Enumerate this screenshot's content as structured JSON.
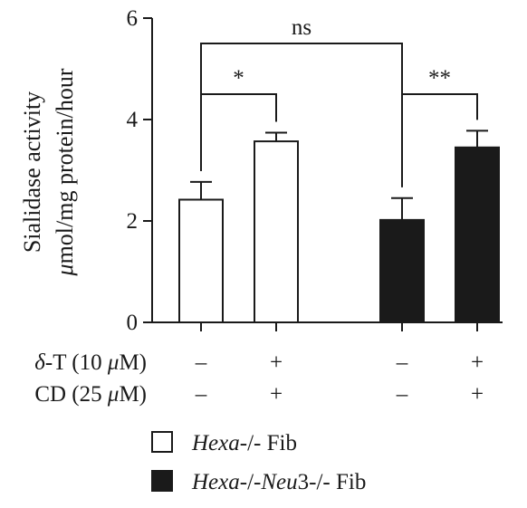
{
  "chart_data": {
    "type": "bar",
    "ylabel_line1": "Sialidase activity",
    "ylabel_line2": "μmol/mg protein/hour",
    "ylim": [
      0,
      6
    ],
    "yticks": [
      "0",
      "2",
      "4",
      "6"
    ],
    "bars": [
      {
        "group": "Hexa-/- Fib",
        "value": 2.42,
        "err": 0.35,
        "delta_t": "–",
        "cd": "–"
      },
      {
        "group": "Hexa-/- Fib",
        "value": 3.57,
        "err": 0.17,
        "delta_t": "+",
        "cd": "+"
      },
      {
        "group": "Hexa-/-Neu3-/- Fib",
        "value": 2.02,
        "err": 0.43,
        "delta_t": "–",
        "cd": "–"
      },
      {
        "group": "Hexa-/-Neu3-/- Fib",
        "value": 3.45,
        "err": 0.33,
        "delta_t": "+",
        "cd": "+"
      }
    ],
    "significance": [
      {
        "from": 0,
        "to": 1,
        "label": "*",
        "y": 4.5
      },
      {
        "from": 2,
        "to": 3,
        "label": "**",
        "y": 4.5
      },
      {
        "from": 0,
        "to": 2,
        "label": "ns",
        "y": 5.5
      }
    ],
    "conditions": [
      {
        "prefix": "δ",
        "rest": "-T (10 ",
        "unit_mu": "μ",
        "suffix": "M)"
      },
      {
        "prefix": "",
        "rest": "CD (25 ",
        "unit_mu": "μ",
        "suffix": "M)"
      }
    ],
    "legend": [
      {
        "italic": "Hexa",
        "rest": "-/- Fib",
        "fill": "#ffffff"
      },
      {
        "italic": "Hexa",
        "mid": "-/-",
        "italic2": "Neu",
        "rest": "3-/- Fib",
        "fill": "#1a1a1a"
      }
    ]
  }
}
